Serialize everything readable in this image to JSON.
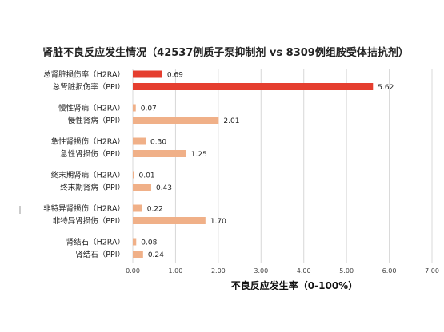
{
  "chart_data": {
    "type": "bar",
    "orientation": "horizontal",
    "title": "肾脏不良反应发生情况（42537例质子泵抑制剂 vs 8309例组胺受体拮抗剂）",
    "xlabel": "不良反应发生率（0-100%）",
    "xlim": [
      0,
      7
    ],
    "xticks": [
      "0.00",
      "1.00",
      "2.00",
      "3.00",
      "4.00",
      "5.00",
      "6.00",
      "7.00"
    ],
    "grid": true,
    "groups": [
      {
        "bars": [
          {
            "label": "总肾脏损伤率（H2RA）",
            "value": 0.69,
            "value_label": "0.69",
            "color": "#e53e2f"
          },
          {
            "label": "总肾脏损伤率（PPI）",
            "value": 5.62,
            "value_label": "5.62",
            "color": "#e53e2f"
          }
        ]
      },
      {
        "bars": [
          {
            "label": "慢性肾病（H2RA）",
            "value": 0.07,
            "value_label": "0.07",
            "color": "#f0b088"
          },
          {
            "label": "慢性肾病（PPI）",
            "value": 2.01,
            "value_label": "2.01",
            "color": "#f0b088"
          }
        ]
      },
      {
        "bars": [
          {
            "label": "急性肾损伤（H2RA）",
            "value": 0.3,
            "value_label": "0.30",
            "color": "#f0b088"
          },
          {
            "label": "急性肾损伤（PPI）",
            "value": 1.25,
            "value_label": "1.25",
            "color": "#f0b088"
          }
        ]
      },
      {
        "bars": [
          {
            "label": "终末期肾病（H2RA）",
            "value": 0.01,
            "value_label": "0.01",
            "color": "#f0b088"
          },
          {
            "label": "终末期肾病（PPI）",
            "value": 0.43,
            "value_label": "0.43",
            "color": "#f0b088"
          }
        ]
      },
      {
        "bars": [
          {
            "label": "非特异肾损伤（H2RA）",
            "value": 0.22,
            "value_label": "0.22",
            "color": "#f0b088"
          },
          {
            "label": "非特异肾损伤（PPI）",
            "value": 1.7,
            "value_label": "1.70",
            "color": "#f0b088"
          }
        ]
      },
      {
        "bars": [
          {
            "label": "肾结石（H2RA）",
            "value": 0.08,
            "value_label": "0.08",
            "color": "#f0b088"
          },
          {
            "label": "肾结石（PPI）",
            "value": 0.24,
            "value_label": "0.24",
            "color": "#f0b088"
          }
        ]
      }
    ]
  }
}
